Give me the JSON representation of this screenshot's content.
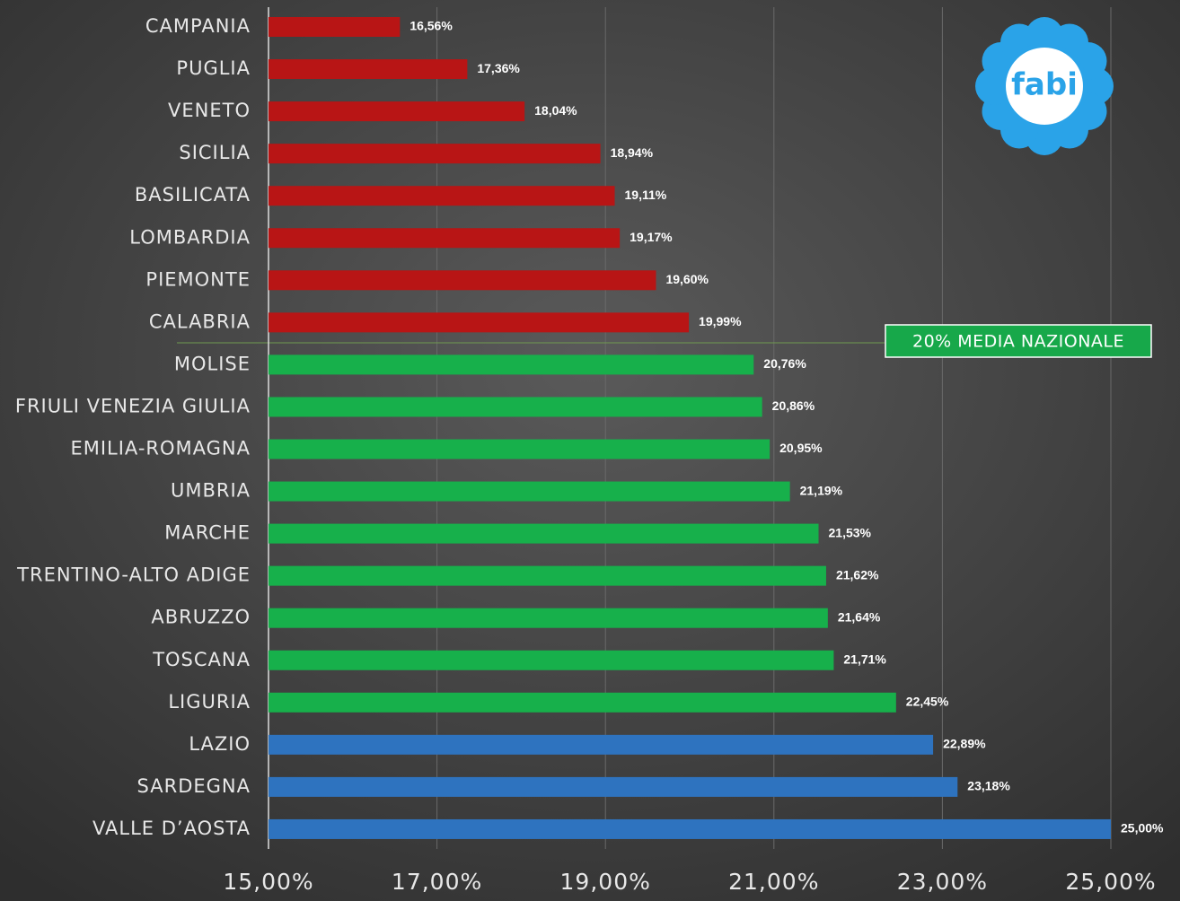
{
  "chart_data": {
    "type": "bar",
    "orientation": "horizontal",
    "categories": [
      "CAMPANIA",
      "PUGLIA",
      "VENETO",
      "SICILIA",
      "BASILICATA",
      "LOMBARDIA",
      "PIEMONTE",
      "CALABRIA",
      "MOLISE",
      "FRIULI VENEZIA GIULIA",
      "EMILIA-ROMAGNA",
      "UMBRIA",
      "MARCHE",
      "TRENTINO-ALTO ADIGE",
      "ABRUZZO",
      "TOSCANA",
      "LIGURIA",
      "LAZIO",
      "SARDEGNA",
      "VALLE D’AOSTA"
    ],
    "values": [
      16.56,
      17.36,
      18.04,
      18.94,
      19.11,
      19.17,
      19.6,
      19.99,
      20.76,
      20.86,
      20.95,
      21.19,
      21.53,
      21.62,
      21.64,
      21.71,
      22.45,
      22.89,
      23.18,
      25.0
    ],
    "value_labels": [
      "16,56%",
      "17,36%",
      "18,04%",
      "18,94%",
      "19,11%",
      "19,17%",
      "19,60%",
      "19,99%",
      "20,76%",
      "20,86%",
      "20,95%",
      "21,19%",
      "21,53%",
      "21,62%",
      "21,64%",
      "21,71%",
      "22,45%",
      "22,89%",
      "23,18%",
      "25,00%"
    ],
    "colors": [
      "#b81515",
      "#b81515",
      "#b81515",
      "#b81515",
      "#b81515",
      "#b81515",
      "#b81515",
      "#b81515",
      "#17b04b",
      "#17b04b",
      "#17b04b",
      "#17b04b",
      "#17b04b",
      "#17b04b",
      "#17b04b",
      "#17b04b",
      "#17b04b",
      "#2e73bf",
      "#2e73bf",
      "#2e73bf"
    ],
    "xlim": [
      15,
      25
    ],
    "xticks": [
      {
        "value": 15,
        "label": "15,00%"
      },
      {
        "value": 17,
        "label": "17,00%"
      },
      {
        "value": 19,
        "label": "19,00%"
      },
      {
        "value": 21,
        "label": "21,00%"
      },
      {
        "value": 23,
        "label": "23,00%"
      },
      {
        "value": 25,
        "label": "25,00%"
      }
    ],
    "grid": true,
    "annotation": "20% MEDIA NAZIONALE",
    "logo": "fabi"
  }
}
